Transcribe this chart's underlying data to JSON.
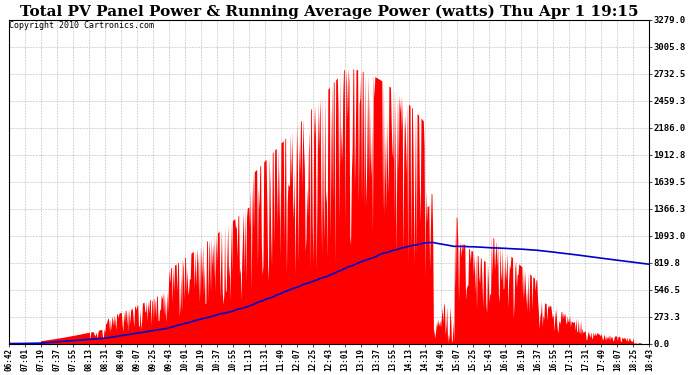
{
  "title": "Total PV Panel Power & Running Average Power (watts) Thu Apr 1 19:15",
  "copyright": "Copyright 2010 Cartronics.com",
  "bg_color": "#ffffff",
  "plot_bg_color": "#ffffff",
  "fill_color": "#ff0000",
  "line_color": "#0000cc",
  "grid_color": "#b0b0b0",
  "ymax": 3279.0,
  "ymin": 0.0,
  "yticks": [
    0.0,
    273.3,
    546.5,
    819.8,
    1093.0,
    1366.3,
    1639.5,
    1912.8,
    2186.0,
    2459.3,
    2732.5,
    3005.8,
    3279.0
  ],
  "xtick_labels": [
    "06:42",
    "07:01",
    "07:19",
    "07:37",
    "07:55",
    "08:13",
    "08:31",
    "08:49",
    "09:07",
    "09:25",
    "09:43",
    "10:01",
    "10:19",
    "10:37",
    "10:55",
    "11:13",
    "11:31",
    "11:49",
    "12:07",
    "12:25",
    "12:43",
    "13:01",
    "13:19",
    "13:37",
    "13:55",
    "14:13",
    "14:31",
    "14:49",
    "15:07",
    "15:25",
    "15:43",
    "16:01",
    "16:19",
    "16:37",
    "16:55",
    "17:13",
    "17:31",
    "17:49",
    "18:07",
    "18:25",
    "18:43"
  ],
  "title_fontsize": 11,
  "copyright_fontsize": 6,
  "tick_fontsize": 5.5,
  "ytick_fontsize": 6.5
}
